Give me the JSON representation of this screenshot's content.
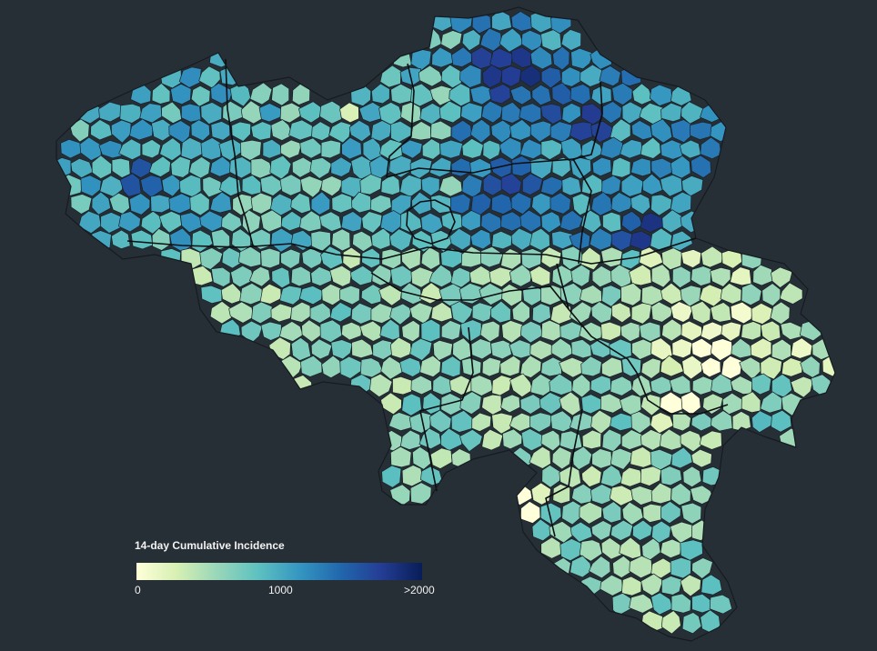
{
  "map": {
    "country": "Belgium",
    "metric": "14-day cumulative incidence by municipality",
    "background_color": "#272f36",
    "border_color": "#0b0f12"
  },
  "legend": {
    "title": "14-day Cumulative Incidence",
    "ticks": [
      "0",
      "1000",
      ">2000"
    ],
    "scale_domain": [
      0,
      2000
    ],
    "colors": [
      "#ffffd9",
      "#d6efb3",
      "#97d6b9",
      "#5dc0c0",
      "#3496c1",
      "#2167ad",
      "#243d94",
      "#081d58"
    ]
  }
}
